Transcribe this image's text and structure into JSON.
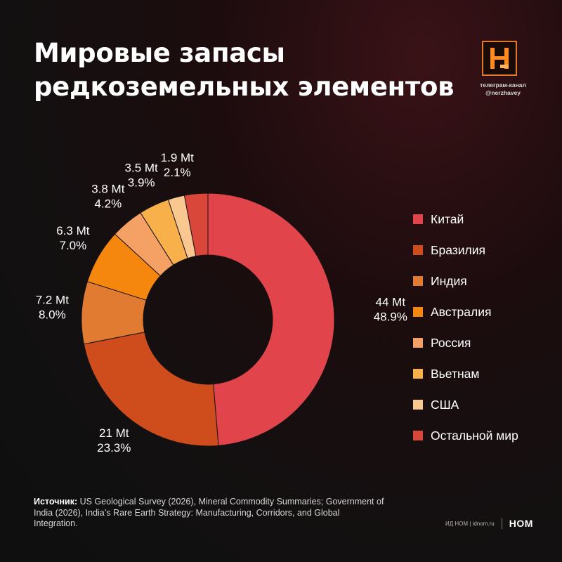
{
  "header": {
    "title_line1": "Мировые запасы",
    "title_line2": "редкоземельных элементов",
    "channel_line1": "телеграм-канал",
    "channel_line2": "@nerzhavey",
    "logo_icon": "nerzhavey-logo-icon"
  },
  "chart_data": {
    "type": "pie",
    "donut": true,
    "unit": "Mt",
    "slices": [
      {
        "label": "Китай",
        "value": 44,
        "value_label": "44 Mt",
        "percent_label": "48.9%",
        "color": "#e2444b"
      },
      {
        "label": "Бразилия",
        "value": 21,
        "value_label": "21 Mt",
        "percent_label": "23.3%",
        "color": "#cf4d1d"
      },
      {
        "label": "Индия",
        "value": 7.2,
        "value_label": "7.2 Mt",
        "percent_label": "8.0%",
        "color": "#e27b32"
      },
      {
        "label": "Австралия",
        "value": 6.3,
        "value_label": "6.3 Mt",
        "percent_label": "7.0%",
        "color": "#f5860e"
      },
      {
        "label": "Россия",
        "value": 3.8,
        "value_label": "3.8 Mt",
        "percent_label": "4.2%",
        "color": "#f5a064"
      },
      {
        "label": "Вьетнам",
        "value": 3.5,
        "value_label": "3.5 Mt",
        "percent_label": "3.9%",
        "color": "#f7b04a"
      },
      {
        "label": "США",
        "value": 1.9,
        "value_label": "1.9 Mt",
        "percent_label": "2.1%",
        "color": "#f8c890"
      },
      {
        "label": "Остальной мир",
        "value": 2.7,
        "value_label": "",
        "percent_label": "",
        "color": "#d8473a"
      }
    ],
    "legend_position": "right"
  },
  "source": {
    "label": "Источник:",
    "text": " US Geological Survey (2026), Mineral Commodity Summaries; Government of India (2026), India’s Rare Earth Strategy: Manufacturing, Corridors, and Global Integration."
  },
  "footer": {
    "brand_text": "ИД НОМ | idnom.ru",
    "brand_mark": "НОМ"
  }
}
